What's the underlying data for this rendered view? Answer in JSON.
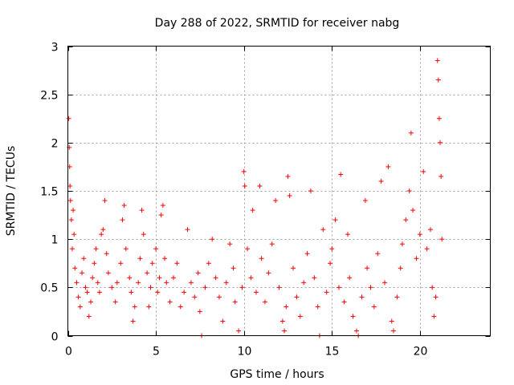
{
  "chart_data": {
    "type": "scatter",
    "title": "Day 288 of 2022, SRMTID for receiver nabg",
    "xlabel": "GPS time / hours",
    "ylabel": "SRMTID / TECUs",
    "xlim": [
      0,
      24
    ],
    "ylim": [
      0,
      3
    ],
    "xticks": [
      0,
      5,
      10,
      15,
      20
    ],
    "xtick_labels": [
      "0",
      "5",
      "10",
      "15",
      "20"
    ],
    "yticks": [
      0,
      0.5,
      1,
      1.5,
      2,
      2.5,
      3
    ],
    "ytick_labels": [
      "0",
      "0.5",
      "1",
      "1.5",
      "2",
      "2.5",
      "3"
    ],
    "grid": true,
    "series": [
      {
        "name": "SRMTID",
        "color": "#ff0000",
        "marker": "plus",
        "points": [
          [
            0.05,
            2.25
          ],
          [
            0.08,
            1.95
          ],
          [
            0.1,
            1.75
          ],
          [
            0.12,
            1.55
          ],
          [
            0.15,
            1.4
          ],
          [
            0.2,
            1.2
          ],
          [
            0.25,
            0.9
          ],
          [
            0.3,
            1.3
          ],
          [
            0.35,
            1.05
          ],
          [
            0.4,
            0.7
          ],
          [
            0.5,
            0.55
          ],
          [
            0.6,
            0.4
          ],
          [
            0.7,
            0.3
          ],
          [
            0.8,
            0.65
          ],
          [
            0.9,
            0.8
          ],
          [
            1.0,
            0.5
          ],
          [
            1.1,
            0.45
          ],
          [
            1.2,
            0.2
          ],
          [
            1.3,
            0.35
          ],
          [
            1.4,
            0.6
          ],
          [
            1.5,
            0.75
          ],
          [
            1.6,
            0.9
          ],
          [
            1.7,
            0.55
          ],
          [
            1.8,
            0.45
          ],
          [
            1.9,
            1.05
          ],
          [
            2.0,
            1.1
          ],
          [
            2.1,
            1.4
          ],
          [
            2.2,
            0.85
          ],
          [
            2.3,
            0.65
          ],
          [
            2.5,
            0.5
          ],
          [
            2.7,
            0.35
          ],
          [
            2.8,
            0.55
          ],
          [
            3.0,
            0.75
          ],
          [
            3.1,
            1.2
          ],
          [
            3.2,
            1.35
          ],
          [
            3.3,
            0.9
          ],
          [
            3.5,
            0.6
          ],
          [
            3.6,
            0.45
          ],
          [
            3.7,
            0.15
          ],
          [
            3.8,
            0.3
          ],
          [
            4.0,
            0.55
          ],
          [
            4.1,
            0.8
          ],
          [
            4.2,
            1.3
          ],
          [
            4.3,
            1.05
          ],
          [
            4.5,
            0.65
          ],
          [
            4.6,
            0.3
          ],
          [
            4.7,
            0.5
          ],
          [
            4.8,
            0.75
          ],
          [
            5.0,
            0.9
          ],
          [
            5.1,
            0.45
          ],
          [
            5.2,
            0.6
          ],
          [
            5.3,
            1.25
          ],
          [
            5.4,
            1.35
          ],
          [
            5.5,
            0.8
          ],
          [
            5.6,
            0.55
          ],
          [
            5.8,
            0.35
          ],
          [
            6.0,
            0.6
          ],
          [
            6.2,
            0.75
          ],
          [
            6.4,
            0.3
          ],
          [
            6.6,
            0.45
          ],
          [
            6.8,
            1.1
          ],
          [
            7.0,
            0.55
          ],
          [
            7.2,
            0.4
          ],
          [
            7.4,
            0.65
          ],
          [
            7.5,
            0.25
          ],
          [
            7.6,
            0.0
          ],
          [
            7.8,
            0.5
          ],
          [
            8.0,
            0.75
          ],
          [
            8.2,
            1.0
          ],
          [
            8.4,
            0.6
          ],
          [
            8.6,
            0.4
          ],
          [
            8.8,
            0.15
          ],
          [
            9.0,
            0.55
          ],
          [
            9.2,
            0.95
          ],
          [
            9.4,
            0.7
          ],
          [
            9.5,
            0.35
          ],
          [
            9.7,
            0.05
          ],
          [
            9.9,
            0.5
          ],
          [
            10.0,
            1.7
          ],
          [
            10.05,
            1.55
          ],
          [
            10.2,
            0.9
          ],
          [
            10.4,
            0.6
          ],
          [
            10.5,
            1.3
          ],
          [
            10.7,
            0.45
          ],
          [
            10.9,
            1.55
          ],
          [
            11.0,
            0.8
          ],
          [
            11.2,
            0.35
          ],
          [
            11.4,
            0.65
          ],
          [
            11.6,
            0.95
          ],
          [
            11.8,
            1.4
          ],
          [
            12.0,
            0.5
          ],
          [
            12.2,
            0.15
          ],
          [
            12.3,
            0.05
          ],
          [
            12.4,
            0.3
          ],
          [
            12.5,
            1.65
          ],
          [
            12.6,
            1.45
          ],
          [
            12.8,
            0.7
          ],
          [
            13.0,
            0.4
          ],
          [
            13.2,
            0.2
          ],
          [
            13.4,
            0.55
          ],
          [
            13.6,
            0.85
          ],
          [
            13.8,
            1.5
          ],
          [
            14.0,
            0.6
          ],
          [
            14.2,
            0.3
          ],
          [
            14.3,
            0.0
          ],
          [
            14.5,
            1.1
          ],
          [
            14.7,
            0.45
          ],
          [
            14.9,
            0.75
          ],
          [
            15.0,
            0.9
          ],
          [
            15.2,
            1.2
          ],
          [
            15.4,
            0.5
          ],
          [
            15.5,
            1.67
          ],
          [
            15.7,
            0.35
          ],
          [
            15.9,
            1.05
          ],
          [
            16.0,
            0.6
          ],
          [
            16.2,
            0.2
          ],
          [
            16.4,
            0.05
          ],
          [
            16.5,
            0.0
          ],
          [
            16.7,
            0.4
          ],
          [
            16.9,
            1.4
          ],
          [
            17.0,
            0.7
          ],
          [
            17.2,
            0.5
          ],
          [
            17.4,
            0.3
          ],
          [
            17.6,
            0.85
          ],
          [
            17.8,
            1.6
          ],
          [
            18.0,
            0.55
          ],
          [
            18.2,
            1.75
          ],
          [
            18.4,
            0.15
          ],
          [
            18.5,
            0.05
          ],
          [
            18.7,
            0.4
          ],
          [
            18.9,
            0.7
          ],
          [
            19.0,
            0.95
          ],
          [
            19.2,
            1.2
          ],
          [
            19.4,
            1.5
          ],
          [
            19.5,
            2.1
          ],
          [
            19.6,
            1.3
          ],
          [
            19.8,
            0.8
          ],
          [
            20.0,
            1.05
          ],
          [
            20.2,
            1.7
          ],
          [
            20.4,
            0.9
          ],
          [
            20.6,
            1.1
          ],
          [
            20.7,
            0.5
          ],
          [
            20.8,
            0.2
          ],
          [
            20.9,
            0.4
          ],
          [
            21.0,
            2.85
          ],
          [
            21.05,
            2.65
          ],
          [
            21.1,
            2.25
          ],
          [
            21.15,
            2.0
          ],
          [
            21.2,
            1.65
          ],
          [
            21.25,
            1.0
          ]
        ]
      }
    ]
  }
}
